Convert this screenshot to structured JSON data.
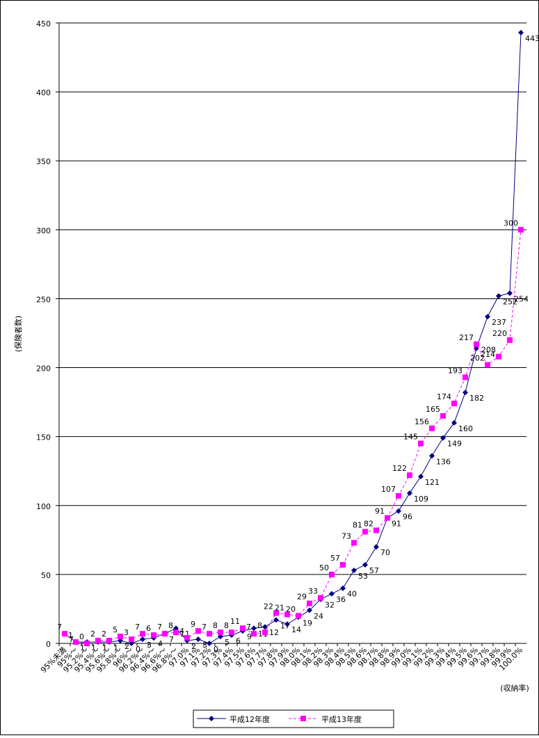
{
  "chart_data": {
    "type": "line",
    "categories": [
      "95%未満",
      "95%～",
      "95.2%～",
      "95.4%～",
      "95.6%～",
      "95.8%～",
      "96%～",
      "96.2%～",
      "96.4%～",
      "96.6%～",
      "96.8%～",
      "97.0%",
      "97.1%",
      "97.2%",
      "97.3%",
      "97.4%",
      "97.5%",
      "97.6%",
      "97.7%",
      "97.8%",
      "97.9%",
      "98.0%",
      "98.1%",
      "98.2%",
      "98.3%",
      "98.4%",
      "98.5%",
      "98.6%",
      "98.7%",
      "98.8%",
      "98.9%",
      "99.0%",
      "99.1%",
      "99.2%",
      "99.3%",
      "99.4%",
      "99.5%",
      "99.6%",
      "99.7%",
      "99.8%",
      "99.9%",
      "100.0%"
    ],
    "series": [
      {
        "name": "平成12年度",
        "color": "#000080",
        "marker": "diamond",
        "dash": false,
        "values": [
          7,
          1,
          1,
          1,
          1,
          2,
          0,
          3,
          4,
          7,
          11,
          2,
          3,
          0,
          5,
          6,
          9,
          11,
          12,
          17,
          14,
          19,
          24,
          32,
          36,
          40,
          53,
          57,
          70,
          91,
          96,
          109,
          121,
          136,
          149,
          160,
          182,
          214,
          237,
          252,
          254,
          443
        ]
      },
      {
        "name": "平成13年度",
        "color": "#ff00ff",
        "marker": "square",
        "dash": true,
        "values": [
          7,
          1,
          0,
          2,
          2,
          5,
          3,
          7,
          6,
          7,
          8,
          4,
          9,
          7,
          8,
          8,
          11,
          7,
          8,
          22,
          21,
          20,
          29,
          33,
          50,
          57,
          73,
          81,
          82,
          91,
          107,
          122,
          145,
          156,
          165,
          174,
          193,
          217,
          202,
          208,
          220,
          300
        ]
      }
    ],
    "y_label": "(保険者数)",
    "x_label": "(収納率)",
    "ylim": [
      0,
      450
    ],
    "yticks": [
      0,
      50,
      100,
      150,
      200,
      250,
      300,
      350,
      400,
      450
    ],
    "grid": true,
    "legend": "bottom"
  }
}
